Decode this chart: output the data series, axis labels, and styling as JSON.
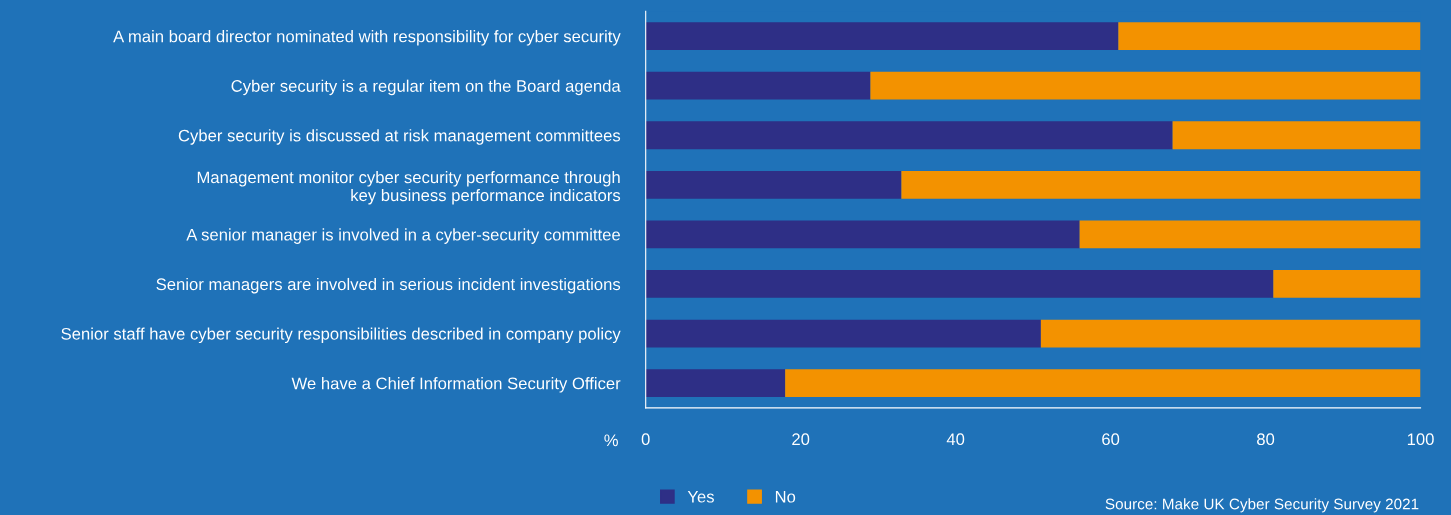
{
  "chart_data": {
    "type": "bar",
    "orientation": "horizontal",
    "stacked": true,
    "categories": [
      "A main board director nominated with responsibility for cyber security",
      "Cyber security is a regular item on the Board agenda",
      "Cyber security is discussed at risk management committees",
      "Management monitor cyber security performance through\nkey business performance indicators",
      "A senior manager is involved in a cyber-security committee",
      "Senior managers are involved in serious incident investigations",
      "Senior staff have cyber security responsibilities described in company policy",
      "We have a Chief Information Security Officer"
    ],
    "series": [
      {
        "name": "Yes",
        "color": "#2e2f86",
        "values": [
          61,
          29,
          68,
          33,
          56,
          81,
          51,
          18
        ]
      },
      {
        "name": "No",
        "color": "#f39200",
        "values": [
          39,
          71,
          32,
          67,
          44,
          19,
          49,
          82
        ]
      }
    ],
    "xlabel": "%",
    "xlim": [
      0,
      100
    ],
    "xticks": [
      0,
      20,
      40,
      60,
      80,
      100
    ],
    "grid": false,
    "legend": "bottom left",
    "annotations": [
      "Source: Make UK Cyber Security Survey 2021"
    ]
  }
}
